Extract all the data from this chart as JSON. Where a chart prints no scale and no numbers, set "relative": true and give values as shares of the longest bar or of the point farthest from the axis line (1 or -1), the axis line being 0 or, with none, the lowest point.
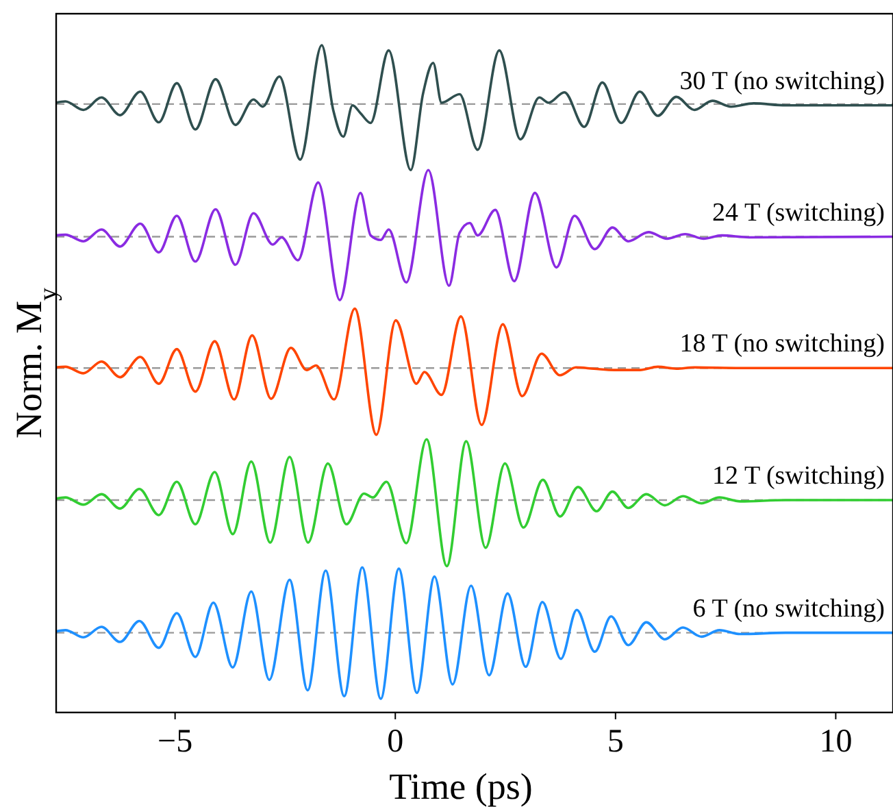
{
  "chart_data": {
    "type": "line",
    "relative": true,
    "xlabel": "Time (ps)",
    "ylabel": "Norm. M$_{y}$",
    "xlim": [
      -7.7,
      11.3
    ],
    "xticks": [
      {
        "value": -5,
        "label": "−5"
      },
      0,
      5,
      10
    ],
    "tick_labels": "x",
    "legend": false,
    "grid": false,
    "marker": "none",
    "line_style": "solid",
    "series": [
      {
        "name": "30 T (no switching)",
        "color": "#2f4f4f",
        "x": [
          -7.7,
          -7.49,
          -7.08,
          -6.67,
          -6.25,
          -5.79,
          -5.37,
          -4.96,
          -4.54,
          -4.08,
          -3.63,
          -3.22,
          -3.01,
          -2.63,
          -2.16,
          -1.67,
          -1.41,
          -1.18,
          -0.97,
          -0.79,
          -0.56,
          -0.15,
          0.35,
          0.63,
          0.86,
          1.05,
          1.46,
          1.87,
          2.36,
          2.84,
          3.27,
          3.48,
          3.84,
          4.29,
          4.7,
          5.13,
          5.55,
          5.96,
          6.38,
          6.79,
          7.2,
          7.62,
          8.14,
          8.86,
          11.3
        ],
        "values": [
          0.912,
          0.914,
          0.901,
          0.92,
          0.893,
          0.929,
          0.882,
          0.942,
          0.871,
          0.948,
          0.878,
          0.917,
          0.906,
          0.952,
          0.825,
          1,
          0.901,
          0.86,
          0.908,
          0.896,
          0.881,
          0.992,
          0.809,
          0.926,
          0.973,
          0.912,
          0.925,
          0.84,
          0.992,
          0.856,
          0.92,
          0.912,
          0.928,
          0.875,
          0.943,
          0.881,
          0.929,
          0.892,
          0.921,
          0.901,
          0.915,
          0.906,
          0.911,
          0.908,
          0.908
        ]
      },
      {
        "name": "24 T (switching)",
        "color": "#8a2be2",
        "x": [
          -7.7,
          -7.49,
          -7.08,
          -6.67,
          -6.25,
          -5.79,
          -5.37,
          -4.96,
          -4.54,
          -4.08,
          -3.63,
          -3.22,
          -2.78,
          -2.58,
          -2.21,
          -1.75,
          -1.26,
          -0.79,
          -0.56,
          -0.33,
          -0.15,
          0.25,
          0.75,
          1.22,
          1.46,
          1.69,
          1.87,
          2.27,
          2.7,
          3.17,
          3.66,
          4.07,
          4.53,
          4.93,
          5.29,
          5.75,
          6.17,
          6.58,
          7.0,
          7.41,
          8.03,
          11.3
        ],
        "values": [
          0.709,
          0.71,
          0.7,
          0.718,
          0.692,
          0.727,
          0.683,
          0.739,
          0.669,
          0.749,
          0.664,
          0.743,
          0.695,
          0.706,
          0.671,
          0.79,
          0.61,
          0.774,
          0.709,
          0.702,
          0.718,
          0.637,
          0.809,
          0.632,
          0.713,
          0.728,
          0.709,
          0.748,
          0.639,
          0.774,
          0.66,
          0.739,
          0.688,
          0.721,
          0.7,
          0.714,
          0.704,
          0.711,
          0.704,
          0.709,
          0.706,
          0.707
        ]
      },
      {
        "name": "18 T (no switching)",
        "color": "#ff4500",
        "x": [
          -7.7,
          -7.49,
          -7.08,
          -6.67,
          -6.25,
          -5.79,
          -5.37,
          -4.96,
          -4.54,
          -4.1,
          -3.66,
          -3.25,
          -2.82,
          -2.37,
          -2.01,
          -1.8,
          -1.39,
          -0.92,
          -0.43,
          0.01,
          0.48,
          0.66,
          1.05,
          1.49,
          1.96,
          2.44,
          2.88,
          3.32,
          3.74,
          4.1,
          4.51,
          4.98,
          5.55,
          5.96,
          6.38,
          6.79,
          7.83,
          11.3
        ],
        "values": [
          0.507,
          0.508,
          0.498,
          0.516,
          0.492,
          0.523,
          0.482,
          0.535,
          0.47,
          0.547,
          0.458,
          0.556,
          0.459,
          0.537,
          0.503,
          0.51,
          0.458,
          0.597,
          0.404,
          0.579,
          0.482,
          0.5,
          0.465,
          0.585,
          0.419,
          0.573,
          0.463,
          0.528,
          0.495,
          0.507,
          0.505,
          0.503,
          0.503,
          0.508,
          0.505,
          0.507,
          0.506,
          0.506
        ]
      },
      {
        "name": "12 T (switching)",
        "color": "#32cd32",
        "x": [
          -7.7,
          -7.49,
          -7.08,
          -6.67,
          -6.25,
          -5.81,
          -5.37,
          -4.96,
          -4.54,
          -4.1,
          -3.69,
          -3.27,
          -2.84,
          -2.4,
          -1.98,
          -1.53,
          -1.11,
          -0.71,
          -0.51,
          -0.2,
          0.25,
          0.71,
          1.17,
          1.61,
          2.05,
          2.49,
          2.91,
          3.35,
          3.74,
          4.15,
          4.57,
          4.93,
          5.29,
          5.7,
          6.12,
          6.53,
          6.95,
          7.36,
          7.83,
          8.86,
          11.3
        ],
        "values": [
          0.306,
          0.308,
          0.297,
          0.313,
          0.291,
          0.321,
          0.281,
          0.332,
          0.267,
          0.347,
          0.252,
          0.363,
          0.239,
          0.37,
          0.239,
          0.36,
          0.267,
          0.314,
          0.308,
          0.332,
          0.238,
          0.397,
          0.203,
          0.394,
          0.231,
          0.36,
          0.262,
          0.335,
          0.279,
          0.324,
          0.287,
          0.317,
          0.292,
          0.313,
          0.296,
          0.31,
          0.299,
          0.308,
          0.302,
          0.304,
          0.304
        ]
      },
      {
        "name": "6 T (no switching)",
        "color": "#1e90ff",
        "x": [
          -7.7,
          -7.49,
          -7.08,
          -6.67,
          -6.25,
          -5.81,
          -5.37,
          -4.96,
          -4.54,
          -4.13,
          -3.69,
          -3.27,
          -2.86,
          -2.4,
          -1.99,
          -1.58,
          -1.16,
          -0.75,
          -0.33,
          0.08,
          0.49,
          0.89,
          1.3,
          1.72,
          2.13,
          2.55,
          2.96,
          3.34,
          3.76,
          4.12,
          4.53,
          4.9,
          5.29,
          5.7,
          6.12,
          6.53,
          6.95,
          7.36,
          7.83,
          8.86,
          11.3
        ],
        "values": [
          0.103,
          0.105,
          0.094,
          0.11,
          0.087,
          0.119,
          0.078,
          0.131,
          0.064,
          0.147,
          0.048,
          0.164,
          0.029,
          0.182,
          0.013,
          0.196,
          0.004,
          0.201,
          0,
          0.199,
          0.009,
          0.187,
          0.022,
          0.173,
          0.036,
          0.161,
          0.049,
          0.148,
          0.061,
          0.136,
          0.072,
          0.126,
          0.082,
          0.117,
          0.091,
          0.109,
          0.095,
          0.105,
          0.099,
          0.101,
          0.101
        ]
      }
    ],
    "ref_lines": [
      {
        "axis": "y",
        "value": 0.91,
        "color": "#999999",
        "line_style": "dashed"
      },
      {
        "axis": "y",
        "value": 0.707,
        "color": "#999999",
        "line_style": "dashed"
      },
      {
        "axis": "y",
        "value": 0.506,
        "color": "#999999",
        "line_style": "dashed"
      },
      {
        "axis": "y",
        "value": 0.304,
        "color": "#999999",
        "line_style": "dashed"
      },
      {
        "axis": "y",
        "value": 0.101,
        "color": "#999999",
        "line_style": "dashed"
      }
    ]
  }
}
